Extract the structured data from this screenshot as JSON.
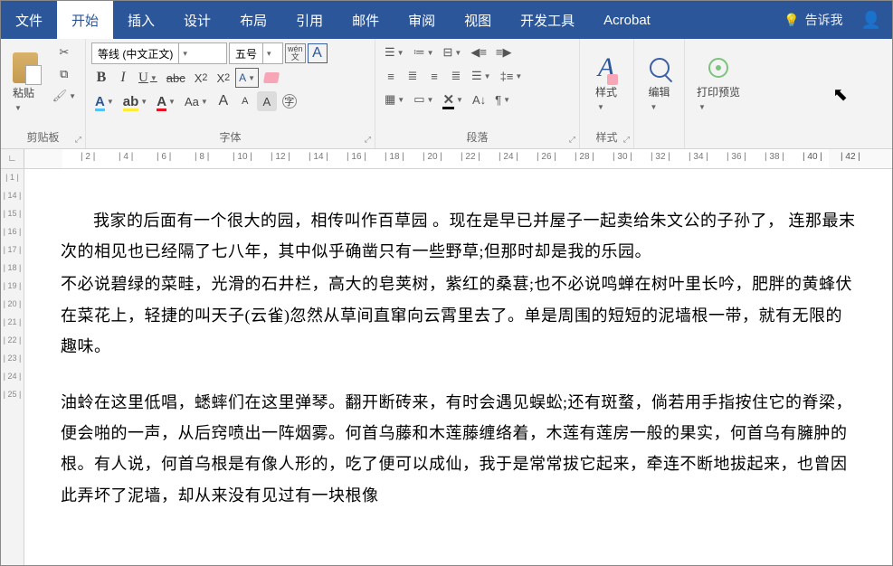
{
  "tabs": [
    "文件",
    "开始",
    "插入",
    "设计",
    "布局",
    "引用",
    "邮件",
    "审阅",
    "视图",
    "开发工具",
    "Acrobat"
  ],
  "activeTab": 1,
  "tellMe": "告诉我",
  "clipboard": {
    "label": "剪贴板",
    "paste": "粘贴"
  },
  "font": {
    "label": "字体",
    "fontName": "等线 (中文正文)",
    "fontSize": "五号",
    "wen": "wén\n文",
    "aa": "Aa"
  },
  "paragraph": {
    "label": "段落"
  },
  "styles": {
    "label": "样式",
    "btn": "样式"
  },
  "editing": {
    "label": "",
    "btn": "编辑"
  },
  "printPreview": {
    "btn": "打印预览"
  },
  "rulerH": [
    2,
    4,
    6,
    8,
    10,
    12,
    14,
    16,
    18,
    20,
    22,
    24,
    26,
    28,
    30,
    32,
    34,
    36,
    38,
    40,
    42
  ],
  "rulerActiveEnd": 40,
  "rulerV": [
    1,
    14,
    15,
    16,
    17,
    18,
    19,
    20,
    21,
    22,
    23,
    24,
    25
  ],
  "doc": {
    "p1": "我家的后面有一个很大的园，相传叫作百草园 。现在是早已并屋子一起卖给朱文公的子孙了， 连那最末次的相见也已经隔了七八年，其中似乎确凿只有一些野草;但那时却是我的乐园。",
    "p2": "不必说碧绿的菜畦，光滑的石井栏，高大的皂荚树，紫红的桑葚;也不必说鸣蝉在树叶里长吟，肥胖的黄蜂伏在菜花上，轻捷的叫天子(云雀)忽然从草间直窜向云霄里去了。单是周围的短短的泥墙根一带，就有无限的趣味。",
    "p3": "油蛉在这里低唱，蟋蟀们在这里弹琴。翻开断砖来，有时会遇见蜈蚣;还有斑蝥，倘若用手指按住它的脊梁，便会啪的一声，从后窍喷出一阵烟雾。何首乌藤和木莲藤缠络着，木莲有莲房一般的果实，何首乌有臃肿的根。有人说，何首乌根是有像人形的，吃了便可以成仙，我于是常常拔它起来，牵连不断地拔起来，也曾因此弄坏了泥墙，却从来没有见过有一块根像"
  }
}
